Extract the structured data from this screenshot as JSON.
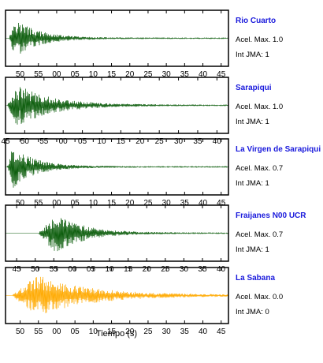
{
  "chart_data": {
    "type": "line",
    "xlabel": "Tiempo (s)",
    "panels": [
      {
        "name": "Rio Cuarto",
        "acel_label": "Acel. Max. 1.0",
        "jma_label": "Int JMA: 1",
        "color": "#0a5c0a",
        "tick_labels": [
          "50",
          "55",
          "00",
          "05",
          "10",
          "15",
          "20",
          "25",
          "30",
          "35",
          "40",
          "45"
        ],
        "tick_values": [
          50,
          55,
          60,
          65,
          70,
          75,
          80,
          85,
          90,
          95,
          100,
          105
        ],
        "xlim": [
          46,
          107
        ],
        "onset": 47,
        "peak_at": 48.5,
        "amplitude": 0.8,
        "decay": 6
      },
      {
        "name": "Sarapiqui",
        "acel_label": "Acel. Max. 1.0",
        "jma_label": "Int JMA: 1",
        "color": "#0a5c0a",
        "tick_labels": [
          "45",
          "50",
          "55",
          "00",
          "05",
          "10",
          "15",
          "20",
          "25",
          "30",
          "35",
          "40"
        ],
        "tick_values": [
          45,
          50,
          55,
          60,
          65,
          70,
          75,
          80,
          85,
          90,
          95,
          100
        ],
        "xlim": [
          45,
          103
        ],
        "onset": 45.5,
        "peak_at": 48,
        "amplitude": 0.8,
        "decay": 9
      },
      {
        "name": "La Virgen de Sarapiqui",
        "acel_label": "Acel. Max. 0.7",
        "jma_label": "Int JMA: 1",
        "color": "#0a5c0a",
        "tick_labels": [
          "50",
          "55",
          "00",
          "05",
          "10",
          "15",
          "20",
          "25",
          "30",
          "35",
          "40",
          "45"
        ],
        "tick_values": [
          50,
          55,
          60,
          65,
          70,
          75,
          80,
          85,
          90,
          95,
          100,
          105
        ],
        "xlim": [
          46,
          107
        ],
        "onset": 46.5,
        "peak_at": 48,
        "amplitude": 0.8,
        "decay": 6
      },
      {
        "name": "Fraijanes N00 UCR",
        "acel_label": "Acel. Max. 0.7",
        "jma_label": "Int JMA: 1",
        "color": "#0a5c0a",
        "tick_labels": [
          "45",
          "50",
          "55",
          "00",
          "05",
          "10",
          "15",
          "20",
          "25",
          "30",
          "35",
          "40"
        ],
        "tick_values": [
          45,
          50,
          55,
          60,
          65,
          70,
          75,
          80,
          85,
          90,
          95,
          100
        ],
        "xlim": [
          42,
          102
        ],
        "onset": 51,
        "peak_at": 55.5,
        "amplitude": 0.8,
        "decay": 7
      },
      {
        "name": "La Sabana",
        "acel_label": "Acel. Max. 0.0",
        "jma_label": "Int JMA: 0",
        "color": "#ffaa00",
        "tick_labels": [
          "50",
          "55",
          "00",
          "05",
          "10",
          "15",
          "20",
          "25",
          "30",
          "35",
          "40",
          "45"
        ],
        "tick_values": [
          50,
          55,
          60,
          65,
          70,
          75,
          80,
          85,
          90,
          95,
          100,
          105
        ],
        "xlim": [
          46,
          107
        ],
        "onset": 48,
        "peak_at": 54.5,
        "amplitude": 0.8,
        "decay": 14
      }
    ]
  }
}
